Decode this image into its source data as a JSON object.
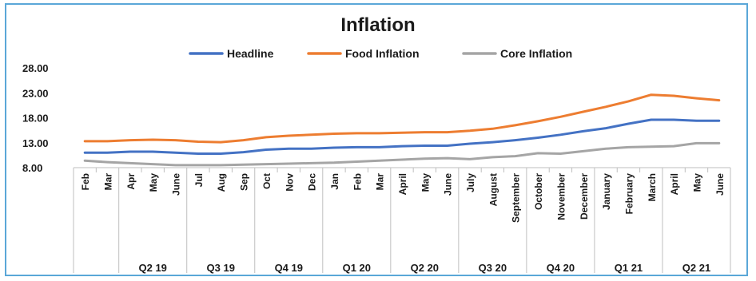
{
  "chart_data": {
    "type": "line",
    "title": "Inflation",
    "xlabel": "",
    "ylabel": "",
    "ylim": [
      8,
      28
    ],
    "yticks": [
      "8.00",
      "13.00",
      "18.00",
      "23.00",
      "28.00"
    ],
    "grid": false,
    "legend_position": "top",
    "categories": [
      "Feb",
      "Mar",
      "Apr",
      "May",
      "June",
      "Jul",
      "Aug",
      "Sep",
      "Oct",
      "Nov",
      "Dec",
      "Jan",
      "Feb",
      "Mar",
      "April",
      "May",
      "June",
      "July",
      "August",
      "September",
      "October",
      "November",
      "December",
      "January",
      "February",
      "March",
      "April",
      "May",
      "June"
    ],
    "quarters": [
      {
        "label": "",
        "span": 2
      },
      {
        "label": "Q2 19",
        "span": 3
      },
      {
        "label": "Q3 19",
        "span": 3
      },
      {
        "label": "Q4 19",
        "span": 3
      },
      {
        "label": "Q1 20",
        "span": 3
      },
      {
        "label": "Q2 20",
        "span": 3
      },
      {
        "label": "Q3 20",
        "span": 3
      },
      {
        "label": "Q4 20",
        "span": 3
      },
      {
        "label": "Q1 21",
        "span": 3
      },
      {
        "label": "Q2 21",
        "span": 3
      }
    ],
    "series": [
      {
        "name": "Headline",
        "color": "#4472c4",
        "values": [
          11.0,
          11.0,
          11.2,
          11.2,
          11.0,
          10.8,
          10.8,
          11.1,
          11.6,
          11.8,
          11.8,
          12.0,
          12.1,
          12.1,
          12.3,
          12.4,
          12.4,
          12.8,
          13.1,
          13.5,
          14.0,
          14.6,
          15.3,
          15.9,
          16.8,
          17.6,
          17.6,
          17.4,
          17.4
        ]
      },
      {
        "name": "Food Inflation",
        "color": "#ed7d31",
        "values": [
          13.3,
          13.3,
          13.5,
          13.6,
          13.5,
          13.2,
          13.1,
          13.5,
          14.1,
          14.4,
          14.6,
          14.8,
          14.9,
          14.9,
          15.0,
          15.1,
          15.1,
          15.4,
          15.8,
          16.5,
          17.3,
          18.2,
          19.2,
          20.2,
          21.3,
          22.6,
          22.4,
          21.9,
          21.5
        ]
      },
      {
        "name": "Core Inflation",
        "color": "#a5a5a5",
        "values": [
          9.4,
          9.1,
          8.9,
          8.7,
          8.5,
          8.5,
          8.5,
          8.6,
          8.7,
          8.8,
          8.9,
          9.0,
          9.2,
          9.4,
          9.6,
          9.8,
          9.9,
          9.7,
          10.1,
          10.3,
          10.9,
          10.8,
          11.3,
          11.8,
          12.1,
          12.2,
          12.3,
          12.9,
          12.9
        ]
      }
    ]
  }
}
